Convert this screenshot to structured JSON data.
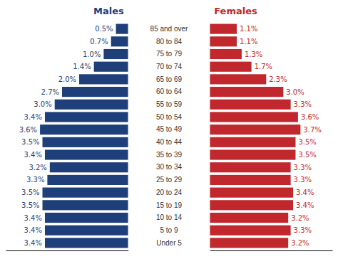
{
  "chart_data": {
    "type": "bar",
    "orientation": "horizontal",
    "categories": [
      "85 and over",
      "80 to 84",
      "75 to 79",
      "70 to 74",
      "65 to 69",
      "60 to 64",
      "55 to 59",
      "50 to 54",
      "45 to 49",
      "40 to 44",
      "35 to 39",
      "30 to 34",
      "25 to 29",
      "20 to 24",
      "15 to 19",
      "10 to 14",
      "5 to 9",
      "Under 5"
    ],
    "series": [
      {
        "name": "Males",
        "color": "#1f3f7a",
        "values": [
          0.5,
          0.7,
          1.0,
          1.4,
          2.0,
          2.7,
          3.0,
          3.4,
          3.6,
          3.5,
          3.4,
          3.2,
          3.3,
          3.5,
          3.5,
          3.4,
          3.4,
          3.4
        ],
        "value_labels": [
          "0.5%",
          "0.7%",
          "1.0%",
          "1.4%",
          "2.0%",
          "2.7%",
          "3.0%",
          "3.4%",
          "3.6%",
          "3.5%",
          "3.4%",
          "3.2%",
          "3.3%",
          "3.5%",
          "3.5%",
          "3.4%",
          "3.4%",
          "3.4%"
        ]
      },
      {
        "name": "Females",
        "color": "#c0282d",
        "values": [
          1.1,
          1.1,
          1.3,
          1.7,
          2.3,
          3.0,
          3.3,
          3.6,
          3.7,
          3.5,
          3.5,
          3.3,
          3.3,
          3.4,
          3.4,
          3.2,
          3.3,
          3.2
        ],
        "value_labels": [
          "1.1%",
          "1.1%",
          "1.3%",
          "1.7%",
          "2.3%",
          "3.0%",
          "3.3%",
          "3.6%",
          "3.7%",
          "3.5%",
          "3.5%",
          "3.3%",
          "3.3%",
          "3.4%",
          "3.4%",
          "3.2%",
          "3.3%",
          "3.2%"
        ]
      }
    ],
    "xlim": [
      0,
      5.0
    ],
    "xticks": [],
    "data_labels": true,
    "tick_labels": "y"
  }
}
